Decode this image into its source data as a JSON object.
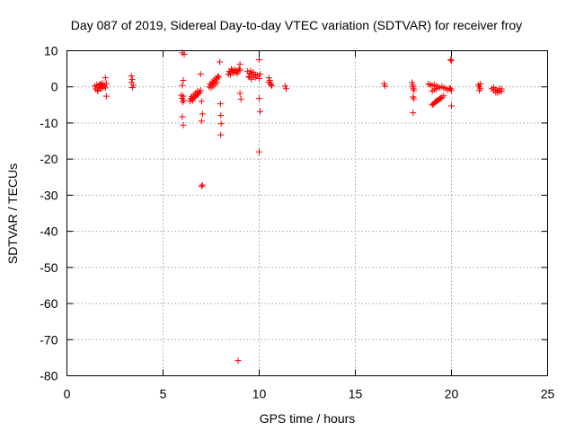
{
  "chart_data": {
    "type": "scatter",
    "title": "Day 087 of 2019, Sidereal Day-to-day VTEC variation (SDTVAR) for receiver froy",
    "xlabel": "GPS time / hours",
    "ylabel": "SDTVAR / TECUs",
    "xlim": [
      0,
      25
    ],
    "ylim": [
      -80,
      10
    ],
    "xticks": [
      "0",
      "5",
      "10",
      "15",
      "20",
      "25"
    ],
    "yticks": [
      "10",
      "0",
      "-10",
      "-20",
      "-30",
      "-40",
      "-50",
      "-60",
      "-70",
      "-80"
    ],
    "grid": true,
    "marker": "plus",
    "color": "#ff0000",
    "series": [
      {
        "name": "SDTVAR",
        "points": [
          [
            1.45,
            0.2
          ],
          [
            1.5,
            -0.6
          ],
          [
            1.55,
            0.5
          ],
          [
            1.6,
            -0.9
          ],
          [
            1.65,
            0.3
          ],
          [
            1.7,
            -0.2
          ],
          [
            1.75,
            0.8
          ],
          [
            1.8,
            -0.5
          ],
          [
            1.85,
            1.0
          ],
          [
            1.9,
            0.1
          ],
          [
            1.95,
            0.4
          ],
          [
            2.0,
            -0.3
          ],
          [
            2.05,
            0.9
          ],
          [
            2.0,
            2.5
          ],
          [
            2.05,
            -2.6
          ],
          [
            1.6,
            -1.2
          ],
          [
            1.7,
            0.6
          ],
          [
            1.8,
            0.3
          ],
          [
            3.35,
            3.0
          ],
          [
            3.4,
            2.0
          ],
          [
            3.35,
            1.2
          ],
          [
            3.45,
            0.4
          ],
          [
            3.4,
            -0.2
          ],
          [
            5.95,
            -2.3
          ],
          [
            5.98,
            -3.2
          ],
          [
            6.02,
            -4.2
          ],
          [
            6.05,
            -2.6
          ],
          [
            6.08,
            -3.7
          ],
          [
            6.0,
            -8.3
          ],
          [
            6.05,
            -10.6
          ],
          [
            6.0,
            0.4
          ],
          [
            6.05,
            1.8
          ],
          [
            6.0,
            9.4
          ],
          [
            6.1,
            9.0
          ],
          [
            6.4,
            -4.0
          ],
          [
            6.5,
            -3.5
          ],
          [
            6.6,
            -3.0
          ],
          [
            6.7,
            -2.5
          ],
          [
            6.8,
            -2.0
          ],
          [
            6.9,
            -1.5
          ],
          [
            6.95,
            -1.0
          ],
          [
            6.5,
            -2.7
          ],
          [
            6.6,
            -2.2
          ],
          [
            6.7,
            -1.7
          ],
          [
            6.8,
            -1.2
          ],
          [
            6.45,
            -3.2
          ],
          [
            6.55,
            -3.8
          ],
          [
            6.65,
            -2.9
          ],
          [
            6.75,
            -2.3
          ],
          [
            6.85,
            -1.8
          ],
          [
            6.95,
            3.5
          ],
          [
            7.0,
            -4.0
          ],
          [
            7.05,
            -7.5
          ],
          [
            7.0,
            -9.5
          ],
          [
            7.05,
            -27.2
          ],
          [
            7.0,
            -27.5
          ],
          [
            7.4,
            0.0
          ],
          [
            7.5,
            0.5
          ],
          [
            7.6,
            1.0
          ],
          [
            7.7,
            1.6
          ],
          [
            7.8,
            2.2
          ],
          [
            7.9,
            2.7
          ],
          [
            7.45,
            0.8
          ],
          [
            7.55,
            1.3
          ],
          [
            7.65,
            1.9
          ],
          [
            7.75,
            2.4
          ],
          [
            7.85,
            2.9
          ],
          [
            7.5,
            -0.3
          ],
          [
            7.6,
            0.2
          ],
          [
            7.7,
            0.7
          ],
          [
            7.8,
            1.2
          ],
          [
            7.95,
            6.9
          ],
          [
            7.98,
            -4.7
          ],
          [
            8.0,
            -7.9
          ],
          [
            8.02,
            -10.2
          ],
          [
            8.0,
            -13.3
          ],
          [
            8.4,
            3.5
          ],
          [
            8.5,
            4.0
          ],
          [
            8.6,
            4.5
          ],
          [
            8.7,
            4.8
          ],
          [
            8.8,
            4.5
          ],
          [
            8.9,
            4.2
          ],
          [
            9.0,
            4.6
          ],
          [
            8.45,
            4.3
          ],
          [
            8.55,
            4.9
          ],
          [
            8.65,
            3.9
          ],
          [
            8.75,
            4.1
          ],
          [
            8.85,
            3.7
          ],
          [
            8.95,
            5.0
          ],
          [
            8.5,
            3.3
          ],
          [
            9.0,
            6.3
          ],
          [
            9.0,
            -1.8
          ],
          [
            9.05,
            -3.4
          ],
          [
            8.9,
            -75.8
          ],
          [
            9.4,
            4.3
          ],
          [
            9.5,
            3.8
          ],
          [
            9.6,
            3.5
          ],
          [
            9.7,
            3.0
          ],
          [
            9.8,
            2.6
          ],
          [
            9.9,
            3.2
          ],
          [
            10.0,
            2.3
          ],
          [
            10.05,
            3.5
          ],
          [
            9.5,
            2.6
          ],
          [
            9.6,
            2.1
          ],
          [
            9.7,
            4.0
          ],
          [
            9.8,
            3.4
          ],
          [
            9.45,
            2.9
          ],
          [
            9.55,
            4.4
          ],
          [
            10.0,
            7.5
          ],
          [
            10.0,
            -3.2
          ],
          [
            10.05,
            -6.8
          ],
          [
            10.0,
            -18.0
          ],
          [
            10.5,
            2.5
          ],
          [
            10.55,
            1.8
          ],
          [
            10.6,
            1.0
          ],
          [
            10.65,
            0.3
          ],
          [
            10.5,
            1.3
          ],
          [
            10.6,
            0.6
          ],
          [
            11.35,
            0.2
          ],
          [
            11.4,
            -0.5
          ],
          [
            16.5,
            0.9
          ],
          [
            16.55,
            0.2
          ],
          [
            17.95,
            1.2
          ],
          [
            17.98,
            0.5
          ],
          [
            18.0,
            0.0
          ],
          [
            18.02,
            -0.5
          ],
          [
            18.05,
            -1.0
          ],
          [
            18.0,
            -2.8
          ],
          [
            18.05,
            -3.3
          ],
          [
            18.0,
            -7.2
          ],
          [
            18.8,
            0.8
          ],
          [
            18.9,
            0.5
          ],
          [
            19.0,
            0.3
          ],
          [
            19.1,
            0.6
          ],
          [
            19.2,
            0.2
          ],
          [
            19.3,
            0.0
          ],
          [
            19.4,
            -0.3
          ],
          [
            19.5,
            0.1
          ],
          [
            19.6,
            -0.2
          ],
          [
            19.7,
            -0.5
          ],
          [
            19.8,
            -0.8
          ],
          [
            19.9,
            -0.4
          ],
          [
            19.0,
            -1.2
          ],
          [
            19.1,
            -0.8
          ],
          [
            19.2,
            -0.5
          ],
          [
            19.0,
            -5.0
          ],
          [
            19.1,
            -4.5
          ],
          [
            19.2,
            -4.0
          ],
          [
            19.3,
            -3.7
          ],
          [
            19.4,
            -3.3
          ],
          [
            19.5,
            -2.9
          ],
          [
            19.6,
            -2.5
          ],
          [
            19.05,
            -4.8
          ],
          [
            19.15,
            -4.2
          ],
          [
            19.25,
            -3.9
          ],
          [
            19.35,
            -3.5
          ],
          [
            19.45,
            -3.1
          ],
          [
            19.95,
            7.5
          ],
          [
            20.0,
            7.2
          ],
          [
            20.0,
            -1.0
          ],
          [
            19.95,
            -0.5
          ],
          [
            20.0,
            -5.3
          ],
          [
            21.4,
            0.5
          ],
          [
            21.45,
            0.0
          ],
          [
            21.5,
            -0.5
          ],
          [
            21.45,
            -1.0
          ],
          [
            21.5,
            0.8
          ],
          [
            22.1,
            -0.5
          ],
          [
            22.2,
            -1.0
          ],
          [
            22.3,
            -1.5
          ],
          [
            22.4,
            -1.0
          ],
          [
            22.5,
            -0.5
          ],
          [
            22.6,
            -1.2
          ],
          [
            22.2,
            -0.2
          ],
          [
            22.3,
            -0.8
          ],
          [
            22.4,
            -1.6
          ],
          [
            22.5,
            -1.3
          ],
          [
            22.6,
            -0.6
          ]
        ]
      }
    ]
  }
}
